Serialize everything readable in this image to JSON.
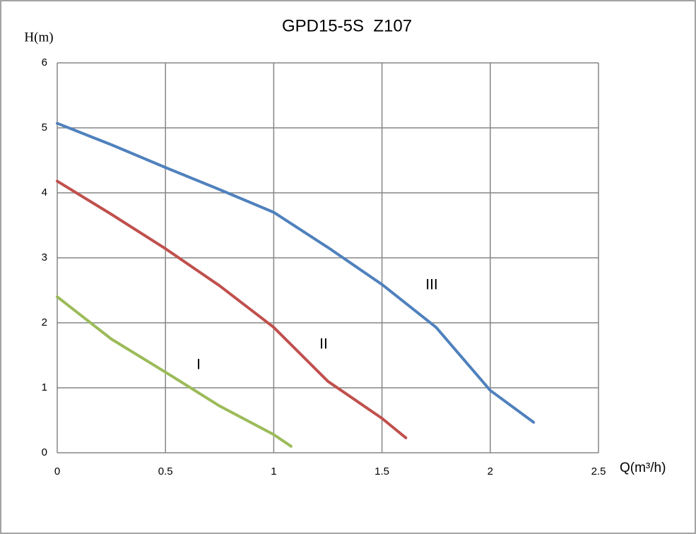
{
  "chart_data": {
    "type": "line",
    "title": "GPD15-5S  Z107",
    "y_label": "H(m)",
    "x_label": "Q(m³/h)",
    "xlim": [
      0,
      2.5
    ],
    "xticks": [
      0,
      0.5,
      1,
      1.5,
      2,
      2.5
    ],
    "ylim": [
      0,
      6
    ],
    "yticks": [
      0,
      1,
      2,
      3,
      4,
      5,
      6
    ],
    "grid": true,
    "series": [
      {
        "color": "#9bbb59",
        "x": [
          0,
          0.25,
          0.5,
          0.75,
          1,
          1.08
        ],
        "values": [
          2.4,
          1.75,
          1.24,
          0.72,
          0.28,
          0.1
        ]
      },
      {
        "color": "#c0504d",
        "x": [
          0,
          0.25,
          0.5,
          0.75,
          1,
          1.25,
          1.5,
          1.61
        ],
        "values": [
          4.18,
          3.67,
          3.14,
          2.57,
          1.93,
          1.1,
          0.53,
          0.23
        ]
      },
      {
        "color": "#4f81bd",
        "x": [
          0,
          0.25,
          0.5,
          0.75,
          1,
          1.25,
          1.5,
          1.75,
          2,
          2.2
        ],
        "values": [
          5.07,
          4.74,
          4.39,
          4.05,
          3.7,
          3.16,
          2.59,
          1.93,
          0.96,
          0.47
        ]
      }
    ],
    "annotations": [
      "I",
      "II",
      "III"
    ]
  }
}
